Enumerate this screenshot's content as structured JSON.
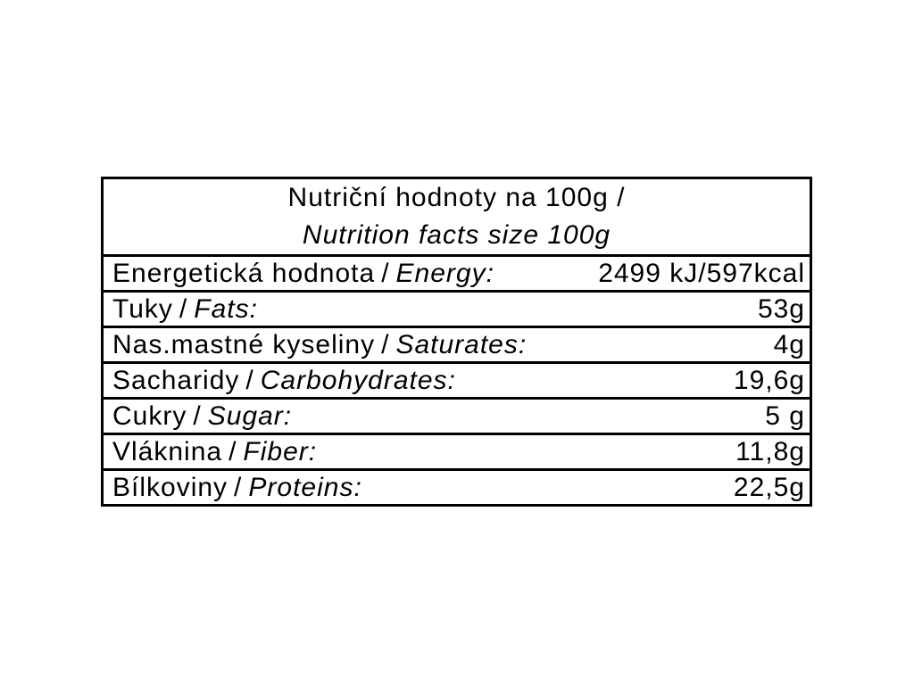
{
  "page": {
    "background_color": "#ffffff",
    "text_color": "#000000",
    "border_color": "#000000"
  },
  "table": {
    "separator": "/",
    "header": {
      "line1": "Nutriční hodnoty na 100g /",
      "line2": "Nutrition facts size 100g"
    },
    "rows": [
      {
        "label_cs": "Energetická hodnota",
        "label_en": "Energy:",
        "value": "2499 kJ/597kcal"
      },
      {
        "label_cs": "Tuky",
        "label_en": "Fats:",
        "value": "53g"
      },
      {
        "label_cs": "Nas.mastné kyseliny",
        "label_en": "Saturates:",
        "value": "4g"
      },
      {
        "label_cs": "Sacharidy",
        "label_en": "Carbohydrates:",
        "value": "19,6g"
      },
      {
        "label_cs": "Cukry",
        "label_en": "Sugar:",
        "value": "5 g"
      },
      {
        "label_cs": "Vláknina",
        "label_en": "Fiber:",
        "value": "11,8g"
      },
      {
        "label_cs": "Bílkoviny",
        "label_en": "Proteins:",
        "value": "22,5g"
      }
    ]
  }
}
